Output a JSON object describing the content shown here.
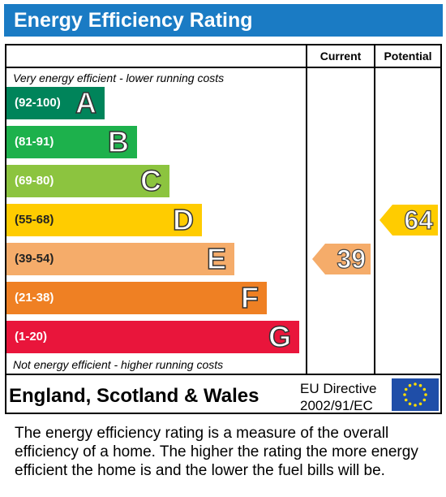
{
  "title": "Energy Efficiency Rating",
  "columns": {
    "current": "Current",
    "potential": "Potential"
  },
  "top_note": "Very energy efficient - lower running costs",
  "bottom_note": "Not energy efficient - higher running costs",
  "bands": [
    {
      "range": "(92-100)",
      "letter": "A",
      "color": "#00845a"
    },
    {
      "range": "(81-91)",
      "letter": "B",
      "color": "#1db14c"
    },
    {
      "range": "(69-80)",
      "letter": "C",
      "color": "#8cc43f"
    },
    {
      "range": "(55-68)",
      "letter": "D",
      "color": "#ffcc00"
    },
    {
      "range": "(39-54)",
      "letter": "E",
      "color": "#f5ac6a"
    },
    {
      "range": "(21-38)",
      "letter": "F",
      "color": "#ef8023"
    },
    {
      "range": "(1-20)",
      "letter": "G",
      "color": "#e9153b"
    }
  ],
  "current_rating": {
    "value": "39",
    "band": "E",
    "color": "#f5ac6a"
  },
  "potential_rating": {
    "value": "64",
    "band": "D",
    "color": "#ffcc00"
  },
  "footer": {
    "region": "England, Scotland & Wales",
    "directive_line1": "EU Directive",
    "directive_line2": "2002/91/EC"
  },
  "description": "The energy efficiency rating is a measure of the overall efficiency of a home. The higher the rating the more energy efficient the home is and the lower the fuel bills will be."
}
